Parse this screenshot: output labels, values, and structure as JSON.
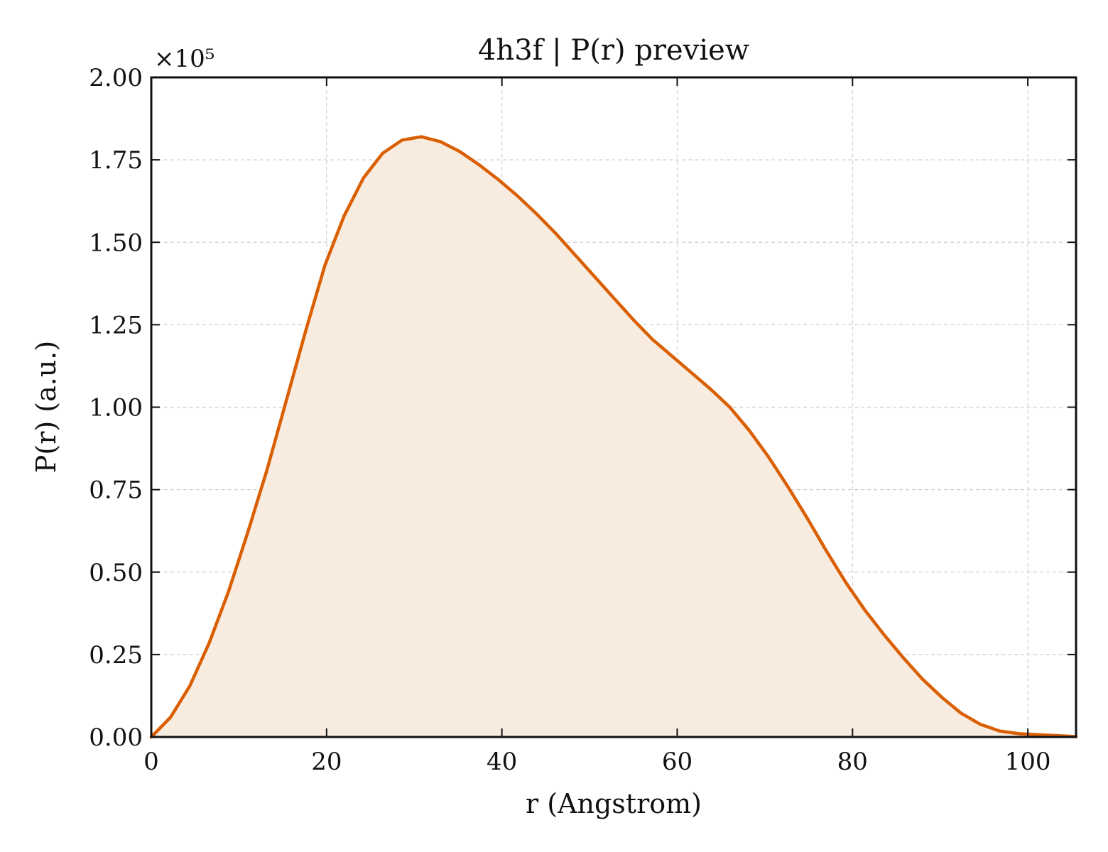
{
  "chart_data": {
    "type": "area",
    "title": "4h3f | P(r) preview",
    "xlabel": "r (Angstrom)",
    "ylabel": "P(r) (a.u.)",
    "y_multiplier": "×10⁵",
    "xlim": [
      0,
      105.5
    ],
    "ylim": [
      0,
      2.0
    ],
    "x_ticks": [
      0,
      20,
      40,
      60,
      80,
      100
    ],
    "x_tick_labels": [
      "0",
      "20",
      "40",
      "60",
      "80",
      "100"
    ],
    "y_ticks": [
      0,
      0.25,
      0.5,
      0.75,
      1.0,
      1.25,
      1.5,
      1.75,
      2.0
    ],
    "y_tick_labels": [
      "0.00",
      "0.25",
      "0.50",
      "0.75",
      "1.00",
      "1.25",
      "1.50",
      "1.75",
      "2.00"
    ],
    "grid": true,
    "colors": {
      "line": "#d95f02",
      "fill": "#f8ebe0"
    },
    "series": [
      {
        "x": [
          0,
          2.2,
          4.4,
          6.6,
          8.8,
          11,
          13.2,
          15.4,
          17.6,
          19.8,
          22,
          24.2,
          26.4,
          28.6,
          30.8,
          33,
          35.2,
          37.4,
          39.6,
          41.8,
          44,
          46.2,
          48.4,
          50.6,
          52.8,
          55,
          57.2,
          59.4,
          61.6,
          63.8,
          66,
          68.2,
          70.4,
          72.6,
          74.8,
          77,
          79.2,
          81.4,
          83.6,
          85.8,
          88,
          90.2,
          92.4,
          94.6,
          96.8,
          99,
          101.2,
          103.4,
          105.5
        ],
        "y": [
          0.0,
          0.06,
          0.155,
          0.285,
          0.44,
          0.62,
          0.81,
          1.02,
          1.23,
          1.43,
          1.58,
          1.695,
          1.77,
          1.81,
          1.82,
          1.805,
          1.775,
          1.735,
          1.69,
          1.64,
          1.585,
          1.525,
          1.46,
          1.395,
          1.33,
          1.265,
          1.205,
          1.155,
          1.105,
          1.055,
          1.0,
          0.93,
          0.85,
          0.76,
          0.665,
          0.565,
          0.47,
          0.385,
          0.31,
          0.24,
          0.175,
          0.12,
          0.072,
          0.038,
          0.018,
          0.01,
          0.007,
          0.004,
          0.001
        ]
      }
    ]
  }
}
